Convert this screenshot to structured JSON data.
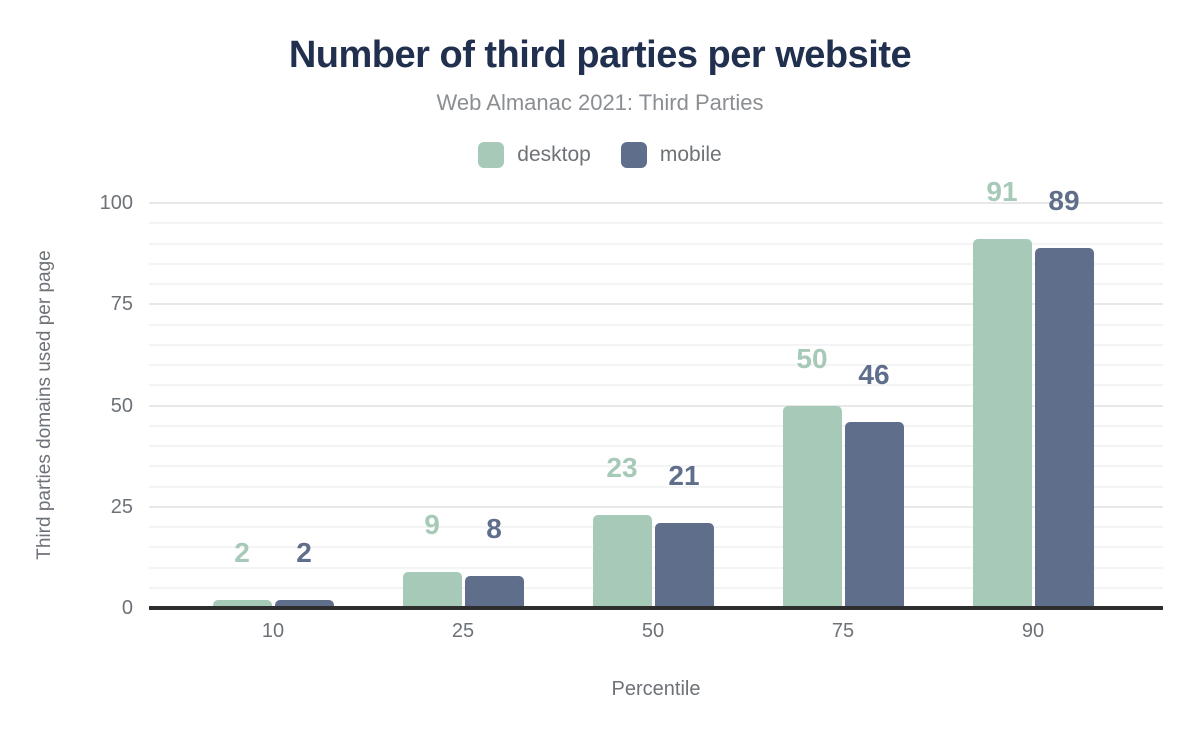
{
  "chart": {
    "title": "Number of third parties per website",
    "subtitle": "Web Almanac 2021: Third Parties",
    "x_axis_title": "Percentile",
    "y_axis_title": "Third parties domains used per page"
  },
  "chart_data": {
    "type": "bar",
    "title": "Number of third parties per website",
    "subtitle": "Web Almanac 2021: Third Parties",
    "xlabel": "Percentile",
    "ylabel": "Third parties domains used per page",
    "categories": [
      "10",
      "25",
      "50",
      "75",
      "90"
    ],
    "series": [
      {
        "name": "desktop",
        "color": "#a7c9b8",
        "values": [
          2,
          9,
          23,
          50,
          91
        ]
      },
      {
        "name": "mobile",
        "color": "#5f6e8a",
        "values": [
          2,
          8,
          21,
          46,
          89
        ]
      }
    ],
    "ylim": [
      0,
      100
    ],
    "yticks": [
      0,
      25,
      50,
      75,
      100
    ],
    "minor_grid_step": 5,
    "grid": "on",
    "legend_position": "top",
    "value_labels": "above-bars"
  },
  "colors": {
    "title": "#22304f",
    "subtitle": "#8b8e92",
    "axis_text": "#6d7278",
    "axis_line": "#2e2e2e",
    "grid_minor": "#f4f4f4",
    "grid_major": "#e8e8e8",
    "desktop": "#a7c9b8",
    "mobile": "#5f6e8a",
    "background": "#ffffff"
  }
}
